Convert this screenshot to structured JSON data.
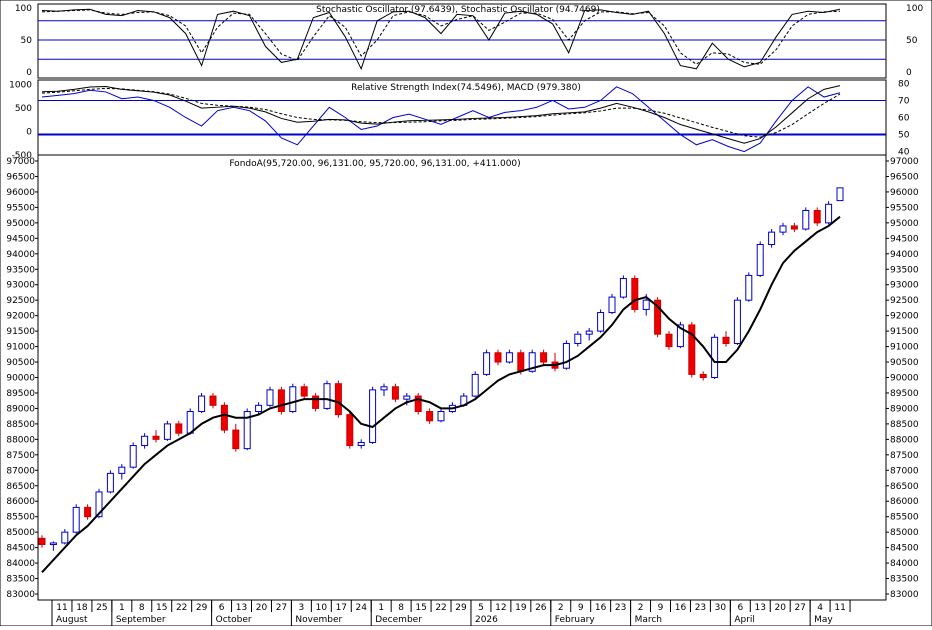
{
  "chart_data": [
    {
      "type": "line",
      "panel": "stochastic",
      "title": "Stochastic Oscillator (97.6439), Stochastic Oscillator (94.7469)",
      "ylim": [
        0,
        100
      ],
      "y_ticks": [
        0,
        50,
        100
      ],
      "reference_lines": [
        20,
        50,
        80
      ],
      "x": [
        0,
        4,
        8,
        12,
        16,
        20,
        24,
        28,
        32,
        36,
        40,
        44,
        48,
        52,
        56,
        60,
        64,
        68,
        72,
        76,
        80,
        84,
        88,
        92,
        96,
        100,
        104,
        108,
        112,
        116,
        120,
        124,
        128,
        132,
        136,
        140,
        144,
        148,
        152,
        156,
        160,
        164,
        168,
        172,
        176,
        180,
        184,
        188,
        192,
        196,
        200
      ],
      "series": [
        {
          "name": "Stochastic Oscillator (97.6439)",
          "values": [
            96,
            95,
            97,
            98,
            90,
            88,
            96,
            94,
            85,
            60,
            10,
            90,
            95,
            88,
            40,
            15,
            20,
            85,
            93,
            55,
            5,
            80,
            94,
            95,
            85,
            60,
            90,
            88,
            50,
            92,
            95,
            90,
            75,
            30,
            96,
            97,
            93,
            90,
            95,
            60,
            10,
            5,
            45,
            20,
            8,
            15,
            55,
            90,
            95,
            93,
            98
          ]
        },
        {
          "name": "Stochastic Oscillator (94.7469)",
          "values": [
            94,
            95,
            96,
            97,
            92,
            90,
            93,
            94,
            88,
            72,
            30,
            70,
            92,
            90,
            60,
            28,
            18,
            55,
            88,
            70,
            25,
            50,
            88,
            94,
            88,
            72,
            82,
            88,
            65,
            78,
            92,
            92,
            82,
            50,
            80,
            94,
            94,
            91,
            93,
            72,
            30,
            12,
            30,
            28,
            15,
            12,
            35,
            72,
            90,
            94,
            95
          ]
        }
      ]
    },
    {
      "type": "line",
      "panel": "rsi_macd",
      "title": "Relative Strength Index(74.5496), MACD (979.380)",
      "left_axis": {
        "ticks": [
          -500,
          0,
          500,
          1000
        ]
      },
      "right_axis": {
        "ticks": [
          40,
          50,
          60,
          70,
          80
        ]
      },
      "reference_lines_right": [
        50,
        70
      ],
      "x": [
        0,
        4,
        8,
        12,
        16,
        20,
        24,
        28,
        32,
        36,
        40,
        44,
        48,
        52,
        56,
        60,
        64,
        68,
        72,
        76,
        80,
        84,
        88,
        92,
        96,
        100,
        104,
        108,
        112,
        116,
        120,
        124,
        128,
        132,
        136,
        140,
        144,
        148,
        152,
        156,
        160,
        164,
        168,
        172,
        176,
        180,
        184,
        188,
        192,
        196,
        200
      ],
      "series": [
        {
          "name": "Relative Strength Index",
          "axis": "right",
          "values": [
            72,
            73,
            74,
            76,
            75,
            71,
            72,
            70,
            66,
            60,
            55,
            64,
            66,
            64,
            58,
            48,
            44,
            55,
            66,
            60,
            53,
            55,
            60,
            62,
            59,
            56,
            60,
            64,
            60,
            63,
            64,
            66,
            70,
            65,
            66,
            70,
            78,
            74,
            66,
            58,
            50,
            44,
            47,
            43,
            40,
            45,
            58,
            70,
            78,
            72,
            74.5
          ]
        },
        {
          "name": "MACD",
          "axis": "left",
          "values": [
            850,
            860,
            900,
            950,
            960,
            900,
            870,
            840,
            780,
            650,
            500,
            520,
            540,
            500,
            420,
            280,
            200,
            220,
            260,
            250,
            180,
            160,
            200,
            230,
            240,
            250,
            260,
            280,
            290,
            300,
            320,
            340,
            380,
            400,
            420,
            500,
            600,
            520,
            420,
            300,
            150,
            50,
            -50,
            -150,
            -250,
            -150,
            100,
            400,
            700,
            900,
            979
          ]
        },
        {
          "name": "MACD Signal",
          "axis": "left",
          "values": [
            820,
            840,
            870,
            900,
            920,
            910,
            880,
            850,
            800,
            710,
            600,
            560,
            540,
            520,
            470,
            380,
            300,
            260,
            250,
            240,
            210,
            190,
            190,
            200,
            210,
            230,
            240,
            260,
            270,
            285,
            300,
            320,
            350,
            380,
            400,
            440,
            500,
            500,
            460,
            390,
            290,
            190,
            90,
            0,
            -90,
            -120,
            -20,
            150,
            380,
            600,
            800
          ]
        }
      ]
    },
    {
      "type": "candlestick",
      "panel": "price",
      "title": "FondoA(95,720.00, 96,131.00, 95,720.00, 96,131.00, +411.000)",
      "ylim": [
        83000,
        97000
      ],
      "y_ticks": [
        83000,
        83500,
        84000,
        84500,
        85000,
        85500,
        86000,
        86500,
        87000,
        87500,
        88000,
        88500,
        89000,
        89500,
        90000,
        90500,
        91000,
        91500,
        92000,
        92500,
        93000,
        93500,
        94000,
        94500,
        95000,
        95500,
        96000,
        96500,
        97000
      ],
      "x_tick_labels": [
        "11",
        "18",
        "25",
        "1",
        "8",
        "15",
        "22",
        "29",
        "6",
        "13",
        "20",
        "27",
        "3",
        "10",
        "17",
        "24",
        "1",
        "8",
        "15",
        "22",
        "29",
        "5",
        "12",
        "19",
        "26",
        "2",
        "9",
        "16",
        "23",
        "2",
        "9",
        "16",
        "23",
        "30",
        "6",
        "13",
        "20",
        "27",
        "4",
        "11"
      ],
      "x_month_labels": [
        "August",
        "September",
        "October",
        "November",
        "December",
        "2026",
        "February",
        "March",
        "April",
        "May"
      ],
      "ohlc_series": [
        [
          84800,
          84900,
          84500,
          84600
        ],
        [
          84600,
          84700,
          84400,
          84650
        ],
        [
          84650,
          85100,
          84600,
          85000
        ],
        [
          85000,
          85900,
          84950,
          85800
        ],
        [
          85800,
          85900,
          85400,
          85500
        ],
        [
          85500,
          86400,
          85450,
          86300
        ],
        [
          86300,
          87000,
          86250,
          86900
        ],
        [
          86900,
          87200,
          86700,
          87100
        ],
        [
          87100,
          87900,
          87050,
          87800
        ],
        [
          87800,
          88200,
          87700,
          88100
        ],
        [
          88100,
          88300,
          87900,
          88000
        ],
        [
          88000,
          88600,
          87950,
          88500
        ],
        [
          88500,
          88600,
          88100,
          88200
        ],
        [
          88200,
          89000,
          88150,
          88900
        ],
        [
          88900,
          89500,
          88850,
          89400
        ],
        [
          89400,
          89500,
          89000,
          89100
        ],
        [
          89100,
          89200,
          88200,
          88300
        ],
        [
          88300,
          88500,
          87600,
          87700
        ],
        [
          87700,
          89000,
          87650,
          88900
        ],
        [
          88900,
          89200,
          88800,
          89100
        ],
        [
          89100,
          89700,
          89050,
          89600
        ],
        [
          89600,
          89700,
          88800,
          88900
        ],
        [
          88900,
          89800,
          88850,
          89700
        ],
        [
          89700,
          89800,
          89300,
          89400
        ],
        [
          89400,
          89500,
          88900,
          89000
        ],
        [
          89000,
          89900,
          88950,
          89800
        ],
        [
          89800,
          89900,
          88700,
          88800
        ],
        [
          88800,
          88900,
          87700,
          87800
        ],
        [
          87800,
          88000,
          87700,
          87900
        ],
        [
          87900,
          89700,
          87850,
          89600
        ],
        [
          89600,
          89800,
          89400,
          89700
        ],
        [
          89700,
          89800,
          89200,
          89300
        ],
        [
          89300,
          89500,
          89100,
          89400
        ],
        [
          89400,
          89500,
          88800,
          88900
        ],
        [
          88900,
          89000,
          88500,
          88600
        ],
        [
          88600,
          89000,
          88550,
          88900
        ],
        [
          88900,
          89200,
          88850,
          89100
        ],
        [
          89100,
          89500,
          89050,
          89400
        ],
        [
          89400,
          90200,
          89350,
          90100
        ],
        [
          90100,
          90900,
          90050,
          90800
        ],
        [
          90800,
          90900,
          90400,
          90500
        ],
        [
          90500,
          90900,
          90450,
          90800
        ],
        [
          90800,
          90900,
          90100,
          90200
        ],
        [
          90200,
          90900,
          90150,
          90800
        ],
        [
          90800,
          90900,
          90400,
          90500
        ],
        [
          90500,
          90800,
          90200,
          90300
        ],
        [
          90300,
          91200,
          90250,
          91100
        ],
        [
          91100,
          91500,
          91000,
          91400
        ],
        [
          91400,
          91600,
          91200,
          91500
        ],
        [
          91500,
          92200,
          91450,
          92100
        ],
        [
          92100,
          92700,
          92050,
          92600
        ],
        [
          92600,
          93300,
          92550,
          93200
        ],
        [
          93200,
          93300,
          92100,
          92200
        ],
        [
          92200,
          92700,
          92000,
          92500
        ],
        [
          92500,
          92600,
          91300,
          91400
        ],
        [
          91400,
          91500,
          90900,
          91000
        ],
        [
          91000,
          91800,
          90950,
          91700
        ],
        [
          91700,
          91800,
          90000,
          90100
        ],
        [
          90100,
          90200,
          89900,
          90000
        ],
        [
          90000,
          91400,
          89950,
          91300
        ],
        [
          91300,
          91500,
          91000,
          91100
        ],
        [
          91100,
          92600,
          91050,
          92500
        ],
        [
          92500,
          93400,
          92450,
          93300
        ],
        [
          93300,
          94400,
          93250,
          94300
        ],
        [
          94300,
          94800,
          94200,
          94700
        ],
        [
          94700,
          95000,
          94600,
          94900
        ],
        [
          94900,
          95000,
          94700,
          94800
        ],
        [
          94800,
          95500,
          94750,
          95400
        ],
        [
          95400,
          95500,
          94900,
          95000
        ],
        [
          95000,
          95700,
          94950,
          95600
        ],
        [
          95720,
          96131,
          95720,
          96131
        ]
      ],
      "series": [
        {
          "name": "Moving Average",
          "values": [
            83700,
            84100,
            84500,
            84900,
            85200,
            85600,
            86000,
            86400,
            86800,
            87200,
            87500,
            87800,
            88000,
            88200,
            88500,
            88700,
            88800,
            88700,
            88700,
            88800,
            89000,
            89100,
            89200,
            89300,
            89300,
            89300,
            89200,
            88900,
            88500,
            88400,
            88700,
            89000,
            89200,
            89300,
            89200,
            89000,
            89000,
            89100,
            89300,
            89600,
            89900,
            90100,
            90200,
            90300,
            90400,
            90400,
            90500,
            90700,
            91000,
            91300,
            91700,
            92200,
            92500,
            92600,
            92300,
            91900,
            91600,
            91400,
            91000,
            90500,
            90500,
            90900,
            91500,
            92200,
            93000,
            93700,
            94100,
            94400,
            94700,
            94900,
            95200
          ]
        }
      ]
    }
  ]
}
